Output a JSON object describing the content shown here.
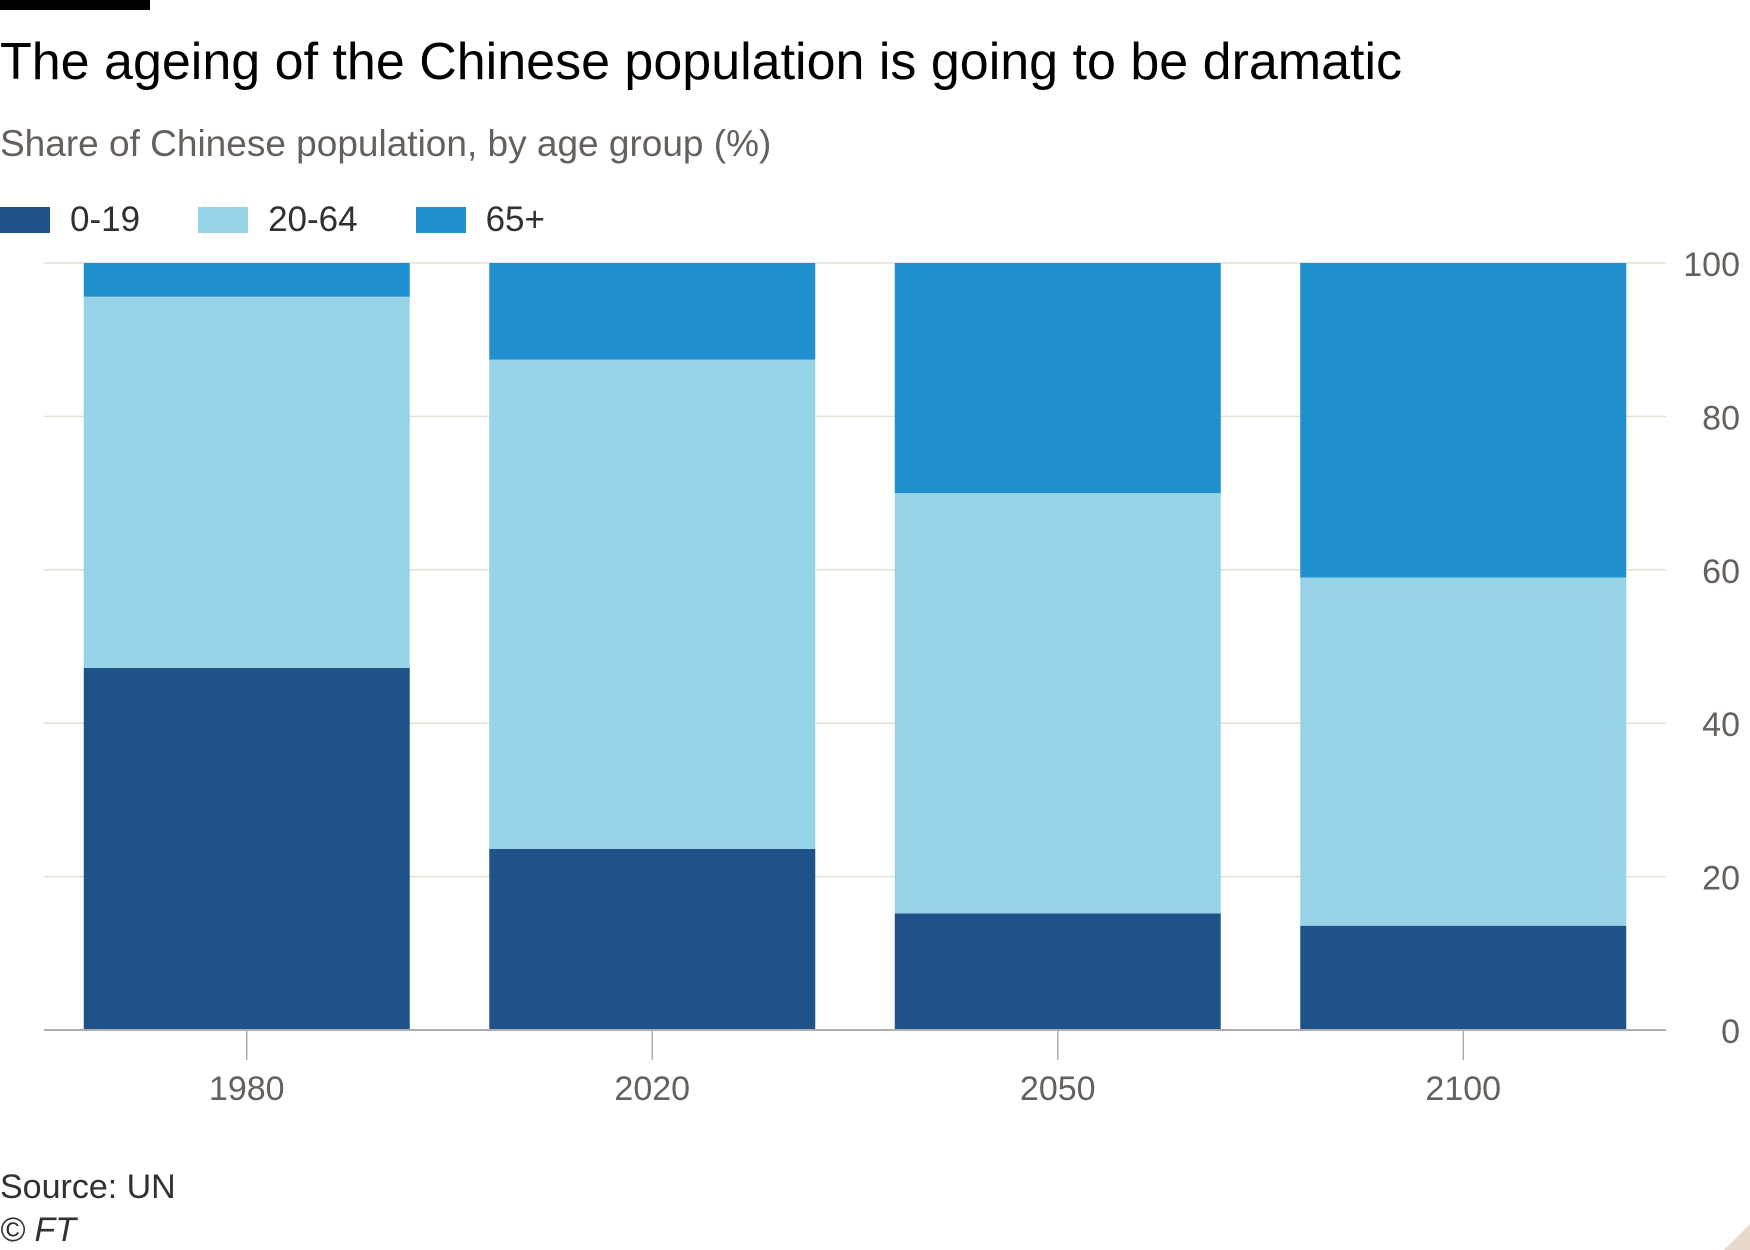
{
  "chart_data": {
    "type": "bar",
    "stacked": true,
    "title": "The ageing of the Chinese population is going to be dramatic",
    "subtitle": "Share of Chinese population, by age group (%)",
    "categories": [
      "1980",
      "2020",
      "2050",
      "2100"
    ],
    "series": [
      {
        "name": "0-19",
        "color": "#20528a",
        "values": [
          47.2,
          23.6,
          15.2,
          13.6
        ]
      },
      {
        "name": "20-64",
        "color": "#96d3e6",
        "values": [
          48.4,
          63.8,
          54.8,
          45.4
        ]
      },
      {
        "name": "65+",
        "color": "#208fce",
        "values": [
          4.4,
          12.6,
          30.0,
          41.0
        ]
      }
    ],
    "ylim": [
      0,
      100
    ],
    "yticks": [
      "0",
      "20",
      "40",
      "60",
      "80",
      "100"
    ],
    "ytick_values": [
      0,
      20,
      40,
      60,
      80,
      100
    ],
    "yaxis_side": "right",
    "grid": true,
    "legend": "top-left",
    "source": "Source: UN",
    "credit": "© FT"
  }
}
